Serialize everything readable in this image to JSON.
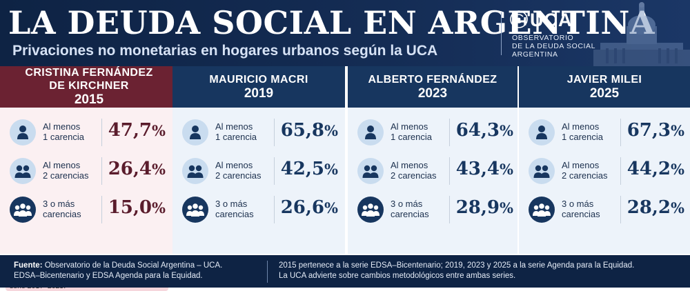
{
  "header": {
    "title": "LA DEUDA SOCIAL EN ARGENTINA",
    "subtitle": "Privaciones no monetarias en hogares urbanos según la UCA",
    "logo_text": "UCA",
    "logo_sub": [
      "OBSERVATORIO",
      "DE LA DEUDA SOCIAL",
      "ARGENTINA"
    ]
  },
  "colors": {
    "kirchner_header": "#6b2232",
    "kirchner_body": "#fbf0f2",
    "kirchner_value": "#5a1c2c",
    "other_header": "#17365f",
    "other_body": "#edf3fa",
    "other_value": "#17365f"
  },
  "chart_data": {
    "type": "table",
    "metric_labels": [
      [
        "Al menos",
        "1 carencia"
      ],
      [
        "Al menos",
        "2 carencias"
      ],
      [
        "3 o más",
        "carencias"
      ]
    ],
    "icons": [
      "single-person-icon",
      "two-people-icon",
      "group-icon"
    ],
    "columns": [
      {
        "name_lines": [
          "CRISTINA FERNÁNDEZ",
          "DE KIRCHNER"
        ],
        "year": "2015",
        "values": [
          "47,7",
          "26,4",
          "15,0"
        ],
        "note": "EDSA–Bicentenario 2010–2016; metodología anterior. No es estrictamente comparable con la serie 2017–2025."
      },
      {
        "name_lines": [
          "MAURICIO MACRI"
        ],
        "year": "2019",
        "values": [
          "65,8",
          "42,5",
          "26,6"
        ]
      },
      {
        "name_lines": [
          "ALBERTO FERNÁNDEZ"
        ],
        "year": "2023",
        "values": [
          "64,3",
          "43,4",
          "28,9"
        ]
      },
      {
        "name_lines": [
          "JAVIER MILEI"
        ],
        "year": "2025",
        "values": [
          "67,3",
          "44,2",
          "28,2"
        ]
      }
    ],
    "unit": "%"
  },
  "footer": {
    "source_label": "Fuente:",
    "source_text": "Observatorio de la Deuda Social Argentina – UCA.",
    "source_line2": "EDSA–Bicentenario y EDSA Agenda para la Equidad.",
    "right_line1": "2015 pertenece a la serie EDSA–Bicentenario; 2019, 2023 y 2025 a la serie Agenda para la Equidad.",
    "right_line2": "La UCA advierte sobre cambios metodológicos entre ambas series."
  }
}
